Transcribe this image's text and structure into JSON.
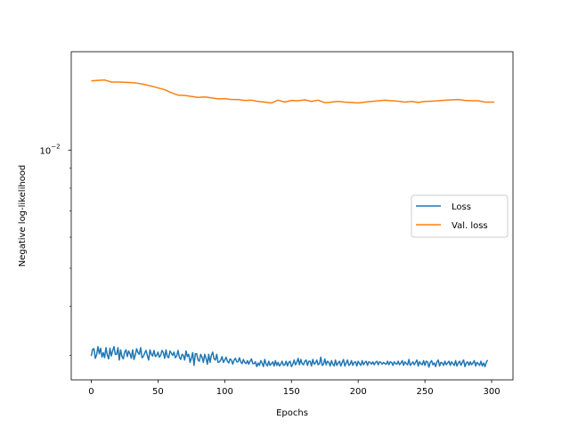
{
  "chart_data": {
    "type": "line",
    "title": "",
    "xlabel": "Epochs",
    "ylabel": "Negative log-likelihood",
    "xlim": [
      -15,
      316
    ],
    "ylim": [
      0.0026,
      0.0178
    ],
    "yscale": "log",
    "xticks": [
      0,
      50,
      100,
      150,
      200,
      250,
      300
    ],
    "xtick_labels": [
      "0",
      "50",
      "100",
      "150",
      "200",
      "250",
      "300"
    ],
    "ytick_major": {
      "value": 0.01,
      "base": "10",
      "exponent": "−2"
    },
    "grid": false,
    "legend": {
      "placement": "center-right",
      "entries": [
        "Loss",
        "Val. loss"
      ]
    },
    "series": [
      {
        "name": "Loss",
        "color": "#1f77b4",
        "x_start": 0,
        "x_step": 1,
        "values": [
          0.00299,
          0.00311,
          0.00312,
          0.00295,
          0.00301,
          0.00316,
          0.00303,
          0.00313,
          0.00297,
          0.00305,
          0.00296,
          0.00314,
          0.00301,
          0.00294,
          0.00313,
          0.00299,
          0.00308,
          0.00316,
          0.00302,
          0.00302,
          0.00314,
          0.00292,
          0.0031,
          0.00298,
          0.00294,
          0.00306,
          0.0031,
          0.00298,
          0.00308,
          0.00303,
          0.00295,
          0.0031,
          0.00293,
          0.00301,
          0.00312,
          0.00305,
          0.00302,
          0.00314,
          0.00296,
          0.00298,
          0.00304,
          0.00309,
          0.003,
          0.00292,
          0.0031,
          0.00302,
          0.00299,
          0.00309,
          0.00298,
          0.003,
          0.00306,
          0.00297,
          0.003,
          0.00309,
          0.00305,
          0.00295,
          0.0031,
          0.00298,
          0.00296,
          0.00308,
          0.00304,
          0.003,
          0.00306,
          0.00296,
          0.00299,
          0.00309,
          0.00297,
          0.00293,
          0.00302,
          0.003,
          0.00292,
          0.00308,
          0.00298,
          0.00302,
          0.00288,
          0.00295,
          0.00305,
          0.00283,
          0.00303,
          0.00303,
          0.00292,
          0.0029,
          0.00302,
          0.00297,
          0.00288,
          0.00302,
          0.00295,
          0.00285,
          0.00302,
          0.00288,
          0.003,
          0.00306,
          0.00294,
          0.00292,
          0.00302,
          0.00288,
          0.00289,
          0.00292,
          0.00298,
          0.00288,
          0.00292,
          0.00297,
          0.0029,
          0.00287,
          0.00294,
          0.00292,
          0.00285,
          0.00292,
          0.00295,
          0.00289,
          0.00289,
          0.00296,
          0.00289,
          0.00286,
          0.00293,
          0.00288,
          0.00286,
          0.00291,
          0.00285,
          0.0029,
          0.00294,
          0.00286,
          0.00286,
          0.00289,
          0.00281,
          0.00287,
          0.00283,
          0.00291,
          0.00287,
          0.00281,
          0.00293,
          0.00285,
          0.00282,
          0.0029,
          0.00283,
          0.00286,
          0.00289,
          0.00282,
          0.00291,
          0.00283,
          0.00288,
          0.00282,
          0.00285,
          0.0029,
          0.00283,
          0.00284,
          0.0029,
          0.00282,
          0.00288,
          0.0029,
          0.00281,
          0.00285,
          0.00292,
          0.00284,
          0.00288,
          0.00295,
          0.00284,
          0.00293,
          0.00286,
          0.00284,
          0.0029,
          0.00292,
          0.00283,
          0.0029,
          0.0029,
          0.00282,
          0.00293,
          0.00285,
          0.00287,
          0.00292,
          0.00284,
          0.00286,
          0.00297,
          0.00283,
          0.00285,
          0.00294,
          0.00284,
          0.0029,
          0.00288,
          0.00282,
          0.00291,
          0.00285,
          0.00282,
          0.00292,
          0.00283,
          0.00287,
          0.0029,
          0.00282,
          0.00288,
          0.00293,
          0.00282,
          0.00287,
          0.00292,
          0.00283,
          0.00285,
          0.00291,
          0.00283,
          0.00288,
          0.00289,
          0.00282,
          0.0029,
          0.00286,
          0.00283,
          0.00291,
          0.00284,
          0.00288,
          0.0029,
          0.00283,
          0.00289,
          0.00288,
          0.00285,
          0.00289,
          0.00284,
          0.00288,
          0.0029,
          0.00284,
          0.00289,
          0.00288,
          0.00285,
          0.00288,
          0.00286,
          0.00285,
          0.0029,
          0.00284,
          0.00289,
          0.00288,
          0.00283,
          0.00289,
          0.00286,
          0.00285,
          0.0029,
          0.00284,
          0.00287,
          0.00291,
          0.00283,
          0.00289,
          0.00286,
          0.00284,
          0.00293,
          0.00283,
          0.00286,
          0.00289,
          0.00284,
          0.00288,
          0.00292,
          0.00282,
          0.00289,
          0.00286,
          0.00284,
          0.00291,
          0.00283,
          0.0029,
          0.00289,
          0.0028,
          0.00288,
          0.00291,
          0.00284,
          0.00287,
          0.00281,
          0.00289,
          0.00292,
          0.00282,
          0.00288,
          0.00287,
          0.00283,
          0.0029,
          0.00284,
          0.00287,
          0.0029,
          0.00283,
          0.00289,
          0.00286,
          0.00283,
          0.00291,
          0.00282,
          0.00287,
          0.0029,
          0.00283,
          0.00288,
          0.00292,
          0.00281,
          0.00287,
          0.00289,
          0.00283,
          0.00289,
          0.00284,
          0.00287,
          0.00291,
          0.00282,
          0.00288,
          0.00286,
          0.00283,
          0.0029,
          0.00282,
          0.00287,
          0.00281,
          0.00288,
          0.00292
        ]
      },
      {
        "name": "Val. loss",
        "color": "#ff7f0e",
        "x": [
          0,
          5,
          10,
          15,
          20,
          30,
          35,
          40,
          45,
          50,
          55,
          60,
          65,
          70,
          75,
          80,
          85,
          90,
          95,
          100,
          105,
          110,
          115,
          120,
          125,
          130,
          135,
          140,
          145,
          150,
          155,
          160,
          165,
          170,
          175,
          180,
          185,
          190,
          195,
          200,
          205,
          210,
          215,
          220,
          225,
          230,
          235,
          240,
          245,
          250,
          255,
          260,
          265,
          270,
          275,
          280,
          285,
          290,
          295,
          302
        ],
        "values": [
          0.015,
          0.01505,
          0.01508,
          0.0149,
          0.0149,
          0.01485,
          0.0148,
          0.01468,
          0.01455,
          0.0144,
          0.01425,
          0.014,
          0.0138,
          0.01378,
          0.0137,
          0.01362,
          0.01365,
          0.01358,
          0.0135,
          0.01352,
          0.01345,
          0.01345,
          0.01338,
          0.0134,
          0.0133,
          0.01325,
          0.01318,
          0.0134,
          0.01325,
          0.01338,
          0.01335,
          0.01342,
          0.0133,
          0.0134,
          0.0132,
          0.01325,
          0.0133,
          0.01325,
          0.01322,
          0.01318,
          0.01325,
          0.0133,
          0.01335,
          0.0134,
          0.01335,
          0.01332,
          0.01325,
          0.0133,
          0.01322,
          0.0133,
          0.01332,
          0.01335,
          0.0134,
          0.01342,
          0.01345,
          0.01338,
          0.01335,
          0.01335,
          0.01325,
          0.01325
        ]
      }
    ]
  }
}
